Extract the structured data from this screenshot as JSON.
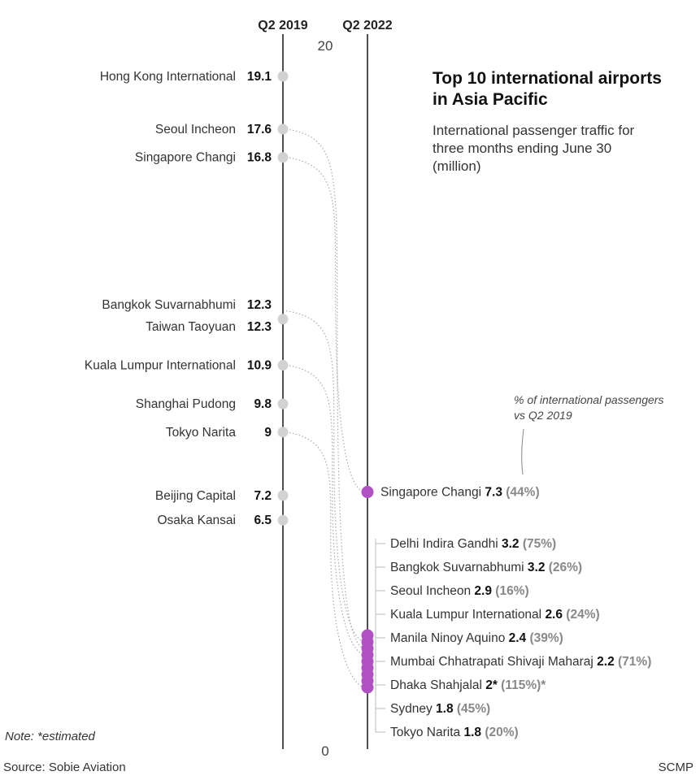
{
  "header": {
    "title": "Top 10 international airports in Asia Pacific",
    "subtitle": "International passenger traffic for three months ending June 30 (million)"
  },
  "annotation": "% of international passengers vs Q2 2019",
  "footer": {
    "note": "Note: *estimated",
    "source": "Source: Sobie Aviation",
    "credit": "SCMP"
  },
  "colors": {
    "q2019_dot": "#d2d2d2",
    "q2022_dot": "#b150c5",
    "axis": "#222222",
    "connector": "#aaaaaa",
    "pct_text": "#888888"
  },
  "chart_data": {
    "type": "slope",
    "ylim": [
      0,
      20
    ],
    "yticks": [
      "20",
      "0"
    ],
    "columns": [
      "Q2 2019",
      "Q2 2022"
    ],
    "q2019": [
      {
        "name": "Hong Kong International",
        "value": 19.1,
        "label": "19.1"
      },
      {
        "name": "Seoul Incheon",
        "value": 17.6,
        "label": "17.6"
      },
      {
        "name": "Singapore Changi",
        "value": 16.8,
        "label": "16.8"
      },
      {
        "name": "Bangkok Suvarnabhumi",
        "value": 12.3,
        "label": "12.3"
      },
      {
        "name": "Taiwan Taoyuan",
        "value": 12.3,
        "label": "12.3"
      },
      {
        "name": "Kuala Lumpur International",
        "value": 10.9,
        "label": "10.9"
      },
      {
        "name": "Shanghai Pudong",
        "value": 9.8,
        "label": "9.8"
      },
      {
        "name": "Tokyo Narita",
        "value": 9,
        "label": "9"
      },
      {
        "name": "Beijing Capital",
        "value": 7.2,
        "label": "7.2"
      },
      {
        "name": "Osaka Kansai",
        "value": 6.5,
        "label": "6.5"
      }
    ],
    "q2022": [
      {
        "name": "Singapore Changi",
        "value": 7.3,
        "label": "7.3",
        "pct": "(44%)"
      },
      {
        "name": "Delhi Indira Gandhi ",
        "value": 3.2,
        "label": "3.2",
        "pct": "(75%)"
      },
      {
        "name": "Bangkok Suvarnabhumi",
        "value": 3.2,
        "label": "3.2",
        "pct": "(26%)"
      },
      {
        "name": "Seoul Incheon",
        "value": 2.9,
        "label": "2.9",
        "pct": "(16%)"
      },
      {
        "name": "Kuala Lumpur International",
        "value": 2.6,
        "label": "2.6",
        "pct": "(24%)"
      },
      {
        "name": "Manila Ninoy Aquino",
        "value": 2.4,
        "label": "2.4",
        "pct": "(39%)"
      },
      {
        "name": "Mumbai Chhatrapati Shivaji Maharaj",
        "value": 2.2,
        "label": "2.2",
        "pct": "(71%)"
      },
      {
        "name": "Dhaka Shahjalal",
        "value": 2,
        "label": "2*",
        "pct": "(115%)*"
      },
      {
        "name": "Sydney",
        "value": 1.8,
        "label": "1.8",
        "pct": "(45%)"
      },
      {
        "name": "Tokyo Narita",
        "value": 1.8,
        "label": "1.8",
        "pct": "(20%)"
      }
    ],
    "connections": [
      [
        "Seoul Incheon",
        "Seoul Incheon"
      ],
      [
        "Singapore Changi",
        "Singapore Changi"
      ],
      [
        "Bangkok Suvarnabhumi",
        "Bangkok Suvarnabhumi"
      ],
      [
        "Kuala Lumpur International",
        "Kuala Lumpur International"
      ],
      [
        "Tokyo Narita",
        "Tokyo Narita"
      ]
    ]
  }
}
